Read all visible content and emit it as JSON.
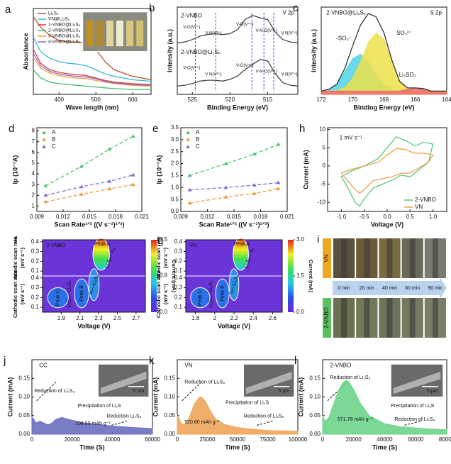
{
  "chart_data": [
    {
      "type": "line",
      "panel": "a",
      "xlabel": "Wave length (nm)",
      "ylabel": "Absorbance",
      "x": [
        330,
        350,
        375,
        400,
        425,
        450,
        475,
        500,
        525,
        550,
        600,
        650
      ],
      "xlim": [
        330,
        650
      ],
      "xticks": [
        400,
        500,
        600
      ],
      "ylim": [
        0,
        1.05
      ],
      "legend": "upper left",
      "series": [
        {
          "name": "Li₂S₆",
          "color": "#b5542a",
          "values": [
            0.95,
            0.82,
            0.72,
            0.66,
            0.64,
            0.64,
            0.63,
            0.55,
            0.4,
            0.3,
            0.22,
            0.18
          ]
        },
        {
          "name": "VN@Li₂S₆",
          "color": "#35b8d8",
          "values": [
            0.7,
            0.52,
            0.44,
            0.4,
            0.38,
            0.37,
            0.35,
            0.3,
            0.25,
            0.22,
            0.18,
            0.16
          ]
        },
        {
          "name": "1-VNBO@Li₂S₆",
          "color": "#e0403a",
          "values": [
            0.55,
            0.38,
            0.3,
            0.27,
            0.25,
            0.24,
            0.23,
            0.2,
            0.17,
            0.15,
            0.13,
            0.12
          ]
        },
        {
          "name": "2-VNBO@Li₂S₆",
          "color": "#3fbf6a",
          "values": [
            0.3,
            0.2,
            0.15,
            0.13,
            0.12,
            0.11,
            0.1,
            0.09,
            0.08,
            0.07,
            0.06,
            0.06
          ]
        },
        {
          "name": "3-VNBO@Li₂S₆",
          "color": "#f0a03a",
          "values": [
            0.45,
            0.32,
            0.26,
            0.23,
            0.21,
            0.2,
            0.19,
            0.17,
            0.15,
            0.13,
            0.11,
            0.1
          ]
        },
        {
          "name": "4-VNBO@Li₂S₆",
          "color": "#8a6ac8",
          "values": [
            0.5,
            0.35,
            0.28,
            0.25,
            0.23,
            0.22,
            0.21,
            0.19,
            0.16,
            0.14,
            0.12,
            0.11
          ]
        }
      ]
    },
    {
      "type": "line",
      "panel": "b",
      "xlabel": "Binding Energy (eV)",
      "ylabel": "Intensity (a.u.)",
      "x": [
        527,
        526,
        525,
        524,
        523,
        522,
        521,
        520,
        519,
        518,
        517,
        516,
        515,
        514,
        513,
        512,
        511
      ],
      "xlim": [
        527,
        511
      ],
      "xticks": [
        525,
        520,
        515
      ],
      "ylim": [
        0,
        1.05
      ],
      "vlines": [
        524.6,
        521.9,
        517.1,
        515.5,
        514.2
      ],
      "annotations": [
        "2-VNBO",
        "V 2p",
        "2-VNBO@Li₂S₆",
        "V-O(V⁵⁺)",
        "V-N(V³⁺)",
        "V-O(V⁴⁺)",
        "V-N-O(V⁴⁺)",
        "V-N(V³⁺)",
        "V-O(V⁵⁺)",
        "V-N(V³⁺)",
        "V-O(V⁴⁺)",
        "V-N-O(V⁴⁺)",
        "V-N(V³⁺)"
      ],
      "series": [
        {
          "name": "2-VNBO",
          "color": "#444444",
          "values": [
            0.62,
            0.63,
            0.66,
            0.7,
            0.72,
            0.73,
            0.72,
            0.73,
            0.78,
            0.9,
            0.95,
            0.92,
            0.9,
            0.75,
            0.66,
            0.63,
            0.62
          ]
        },
        {
          "name": "2-VNBO@Li₂S₆",
          "color": "#444444",
          "values": [
            0.1,
            0.11,
            0.13,
            0.16,
            0.17,
            0.17,
            0.16,
            0.18,
            0.22,
            0.3,
            0.36,
            0.42,
            0.4,
            0.25,
            0.14,
            0.11,
            0.1
          ]
        }
      ]
    },
    {
      "type": "line",
      "panel": "c",
      "xlabel": "Binding Energy (eV)",
      "ylabel": "Intensity (a.u.)",
      "x": [
        172,
        171.5,
        171,
        170.5,
        170,
        169.5,
        169,
        168.5,
        168,
        167.5,
        167,
        166.5,
        166,
        165.5,
        165,
        164.5,
        164
      ],
      "xlim": [
        172,
        164
      ],
      "xticks": [
        172,
        170,
        168,
        166,
        164
      ],
      "ylim": [
        0,
        1.35
      ],
      "annotations": [
        "2-VNBO@Li₂S₆",
        "S 2p",
        "-SO₂⁻",
        "SO₃²⁻",
        "Li₂SO₃"
      ],
      "series": [
        {
          "name": "-SO₂⁻",
          "color": "#4fd3e8",
          "fill": true,
          "values": [
            0.05,
            0.08,
            0.15,
            0.35,
            0.55,
            0.62,
            0.5,
            0.3,
            0.15,
            0.08,
            0.05,
            0.05,
            0.05,
            0.05,
            0.05,
            0.05,
            0.05
          ]
        },
        {
          "name": "SO₃²⁻",
          "color": "#efe04a",
          "fill": true,
          "values": [
            0.05,
            0.05,
            0.06,
            0.1,
            0.25,
            0.5,
            0.8,
            0.95,
            0.85,
            0.5,
            0.2,
            0.08,
            0.05,
            0.05,
            0.05,
            0.05,
            0.05
          ]
        },
        {
          "name": "Li₂SO₃",
          "color": "#f06a6a",
          "fill": true,
          "values": [
            0.05,
            0.05,
            0.05,
            0.05,
            0.05,
            0.05,
            0.05,
            0.05,
            0.05,
            0.05,
            0.05,
            0.08,
            0.1,
            0.08,
            0.05,
            0.05,
            0.05
          ]
        },
        {
          "name": "envelope",
          "color": "#333333",
          "values": [
            0.05,
            0.08,
            0.16,
            0.4,
            0.75,
            1.07,
            1.25,
            1.2,
            0.95,
            0.53,
            0.2,
            0.1,
            0.1,
            0.09,
            0.05,
            0.05,
            0.05
          ]
        }
      ]
    },
    {
      "type": "scatter",
      "panel": "d",
      "xlabel": "Scan Rate¹ᐟ² ((V s⁻¹)¹ᐟ²)",
      "ylabel": "Ip (10⁻³A)",
      "x": [
        0.01,
        0.0141,
        0.0173,
        0.02
      ],
      "xlim": [
        0.009,
        0.021
      ],
      "xticks": [
        0.009,
        0.012,
        0.015,
        0.018,
        0.021
      ],
      "ylim": [
        0.5,
        8.3
      ],
      "yticks": [
        1,
        2,
        3,
        4,
        5,
        6,
        7,
        8
      ],
      "legend": "upper left",
      "series": [
        {
          "name": "A",
          "color": "#4cc46a",
          "values": [
            2.9,
            4.7,
            6.3,
            7.5
          ]
        },
        {
          "name": "B",
          "color": "#f09a40",
          "values": [
            1.4,
            2.1,
            2.6,
            3.0
          ]
        },
        {
          "name": "C",
          "color": "#8a6ad8",
          "values": [
            2.0,
            2.8,
            3.3,
            3.9
          ]
        }
      ]
    },
    {
      "type": "scatter",
      "panel": "e",
      "xlabel": "Scan Rate¹ᐟ² ((V s⁻¹)¹ᐟ²)",
      "ylabel": "Ip (10⁻³A)",
      "x": [
        0.01,
        0.0141,
        0.0173,
        0.02
      ],
      "xlim": [
        0.009,
        0.021
      ],
      "xticks": [
        0.009,
        0.012,
        0.015,
        0.018,
        0.021
      ],
      "ylim": [
        0,
        3.5
      ],
      "yticks": [
        {
          "value": 0,
          "label": "0.0"
        },
        0.5,
        {
          "value": 1,
          "label": "1.0"
        },
        1.5,
        {
          "value": 2,
          "label": "2.0"
        },
        2.5,
        {
          "value": 3,
          "label": "3.0"
        },
        3.5
      ],
      "legend": "upper left",
      "series": [
        {
          "name": "A",
          "color": "#4cc46a",
          "values": [
            1.5,
            2.0,
            2.4,
            2.8
          ]
        },
        {
          "name": "B",
          "color": "#f09a40",
          "values": [
            0.35,
            0.6,
            0.75,
            0.95
          ]
        },
        {
          "name": "C",
          "color": "#8a6ad8",
          "values": [
            0.9,
            1.0,
            1.1,
            1.2
          ]
        }
      ]
    },
    {
      "type": "line",
      "panel": "h",
      "xlabel": "Voltage (V)",
      "ylabel": "Current (mA)",
      "x": [
        -1.0,
        -0.8,
        -0.5,
        -0.2,
        0.0,
        0.2,
        0.4,
        0.6,
        0.8,
        1.0,
        0.9,
        0.7,
        0.5,
        0.3,
        0.1,
        -0.1,
        -0.3,
        -0.5,
        -0.6,
        -0.7,
        -0.9,
        -1.0
      ],
      "xlim": [
        -1.3,
        1.3
      ],
      "xticks": [
        {
          "value": -1,
          "label": "-1.0"
        },
        -0.5,
        {
          "value": 0,
          "label": "0.0"
        },
        0.5,
        {
          "value": 1,
          "label": "1.0"
        }
      ],
      "ylim": [
        -12.5,
        10.5
      ],
      "yticks": [
        -10,
        -5,
        0,
        5,
        10
      ],
      "legend": "lower right",
      "annotations": [
        "1 mV s⁻¹"
      ],
      "series": [
        {
          "name": "2-VNBO",
          "color": "#5cc87a",
          "values": [
            -3,
            -1.5,
            0,
            2,
            5,
            8,
            7,
            5.5,
            6.5,
            6,
            1,
            -1,
            -3,
            -2.5,
            -4,
            -5,
            -6,
            -9,
            -11,
            -10,
            -5,
            -3
          ]
        },
        {
          "name": "VN",
          "color": "#f0a050",
          "values": [
            -2,
            -1,
            0,
            1,
            3,
            4.8,
            4.5,
            3.5,
            3.5,
            3,
            1,
            -0.5,
            -2,
            -2,
            -3,
            -3.5,
            -4,
            -6.5,
            -7.5,
            -6.5,
            -3.5,
            -2
          ]
        }
      ]
    },
    {
      "type": "heatmap",
      "panel": "f",
      "xlabel": "Voltage (V)",
      "ylabel_top": "Anodic scan rate",
      "ylabel_bottom": "Cathodic scan rate",
      "yunit": "(mV s⁻¹)",
      "xlim": [
        1.7,
        2.8
      ],
      "xticks": [
        1.9,
        2.1,
        2.3,
        2.5,
        2.7
      ],
      "ylim": [
        0.05,
        0.42
      ],
      "yticks_top": [
        0.4,
        0.3,
        0.2,
        0.1
      ],
      "yticks_bottom": [
        0.4,
        0.3,
        0.2,
        0.1
      ],
      "clabel": "Current (mA)",
      "clim": [
        0,
        7.5
      ],
      "cticks": [
        {
          "value": 0,
          "label": "0.0"
        },
        3.8,
        7.5
      ],
      "regions": [
        "2-VNBO",
        "Peak C",
        "Li₂S₄—Li₂S₂",
        "Peak B",
        "S₈—Li₂S₈",
        "Peak A",
        "Li₂S₈—S₈"
      ]
    },
    {
      "type": "heatmap",
      "panel": "g",
      "xlabel": "Voltage (V)",
      "ylabel_top": "Anodic scan rate",
      "ylabel_bottom": "Cathodic scan rate",
      "yunit": "(mV s⁻¹)",
      "xlim": [
        1.7,
        2.7
      ],
      "xticks": [
        1.8,
        2.0,
        2.2,
        2.4,
        2.6
      ],
      "ylim": [
        0.05,
        0.42
      ],
      "yticks_top": [
        0.4,
        0.3,
        0.2,
        0.1
      ],
      "yticks_bottom": [
        0.4,
        0.3,
        0.2,
        0.1
      ],
      "clabel": "Current (mA)",
      "clim": [
        0,
        3
      ],
      "cticks": [
        {
          "value": 0,
          "label": "0.0"
        },
        1.5,
        {
          "value": 3,
          "label": "3.0"
        }
      ],
      "regions": [
        "VN",
        "Peak C",
        "Li₂S₄—Li₂S₂",
        "Peak B",
        "S₈—Li₂S₈",
        "Peak A",
        "Li₂S₈—S₈"
      ]
    },
    {
      "type": "images",
      "panel": "i",
      "top_label": "VN",
      "bottom_label": "2-VNBO",
      "times": [
        "0 min",
        "20 min",
        "40 min",
        "60 min",
        "90 min"
      ]
    },
    {
      "type": "area",
      "panel": "j",
      "xlabel": "Time (S)",
      "ylabel": "Current (mA)",
      "x": [
        0,
        1000,
        2000,
        4000,
        6000,
        8000,
        10000,
        12000,
        15000,
        18000,
        22000,
        26000,
        30000,
        40000,
        50000,
        60000
      ],
      "xlim": [
        0,
        60000
      ],
      "xticks": [
        0,
        20000,
        40000,
        60000
      ],
      "ylim": [
        0,
        0.2
      ],
      "yticks": [
        {
          "value": 0,
          "label": "0.00"
        },
        {
          "value": 0.05,
          "label": "0.05"
        },
        {
          "value": 0.1,
          "label": "0.10"
        },
        {
          "value": 0.15,
          "label": "0.15"
        }
      ],
      "annotations": [
        "CC",
        "Reduction of Li₂S₈",
        "Precipitation of Li₂S",
        "104.59 mAh g⁻¹",
        "Reduction Li₂S₆",
        "5 µm"
      ],
      "series": [
        {
          "name": "CC",
          "color": "#6a6fc0",
          "values": [
            0.045,
            0.04,
            0.03,
            0.035,
            0.03,
            0.025,
            0.03,
            0.04,
            0.045,
            0.04,
            0.035,
            0.03,
            0.028,
            0.022,
            0.018,
            0.015
          ]
        }
      ]
    },
    {
      "type": "area",
      "panel": "k",
      "xlabel": "Time (S)",
      "ylabel": "Current (mA)",
      "x": [
        0,
        1000,
        3000,
        6000,
        10000,
        14000,
        18000,
        20000,
        23000,
        27000,
        32000,
        40000,
        50000,
        60000,
        75000,
        100000
      ],
      "xlim": [
        0,
        100000
      ],
      "xticks": [
        0,
        25000,
        50000,
        75000,
        100000
      ],
      "ylim": [
        0,
        0.2
      ],
      "yticks": [
        {
          "value": 0,
          "label": "0.00"
        },
        {
          "value": 0.05,
          "label": "0.05"
        },
        {
          "value": 0.1,
          "label": "0.10"
        },
        {
          "value": 0.15,
          "label": "0.15"
        }
      ],
      "annotations": [
        "VN",
        "Reduction of Li₂S₈",
        "Precipitation of Li₂S",
        "520.80 mAh g⁻¹",
        "Reduction of Li₂S₆",
        "5 µm"
      ],
      "series": [
        {
          "name": "VN",
          "color": "#f0a55a",
          "values": [
            0.05,
            0.045,
            0.03,
            0.025,
            0.045,
            0.08,
            0.098,
            0.1,
            0.09,
            0.065,
            0.04,
            0.025,
            0.018,
            0.014,
            0.01,
            0.008
          ]
        }
      ]
    },
    {
      "type": "area",
      "panel": "l",
      "xlabel": "Time (S)",
      "ylabel": "Current (mA)",
      "x": [
        0,
        1000,
        2000,
        4000,
        7000,
        10000,
        13000,
        15000,
        17000,
        20000,
        24000,
        30000,
        40000,
        50000,
        65000,
        80000
      ],
      "xlim": [
        0,
        80000
      ],
      "xticks": [
        0,
        20000,
        40000,
        60000,
        80000
      ],
      "ylim": [
        0,
        0.2
      ],
      "yticks": [
        {
          "value": 0,
          "label": "0.00"
        },
        {
          "value": 0.05,
          "label": "0.05"
        },
        {
          "value": 0.1,
          "label": "0.10"
        },
        {
          "value": 0.15,
          "label": "0.15"
        }
      ],
      "annotations": [
        "2-VNBO",
        "Reduction of Li₂S₈",
        "Precipitation of Li₂S",
        "571.78 mAh g⁻¹",
        "Reduction of Li₂S₆",
        "5 µm"
      ],
      "series": [
        {
          "name": "2-VNBO",
          "color": "#6dd48a",
          "values": [
            0.05,
            0.04,
            0.035,
            0.045,
            0.08,
            0.115,
            0.138,
            0.145,
            0.14,
            0.12,
            0.085,
            0.05,
            0.028,
            0.02,
            0.015,
            0.012
          ]
        }
      ]
    }
  ]
}
